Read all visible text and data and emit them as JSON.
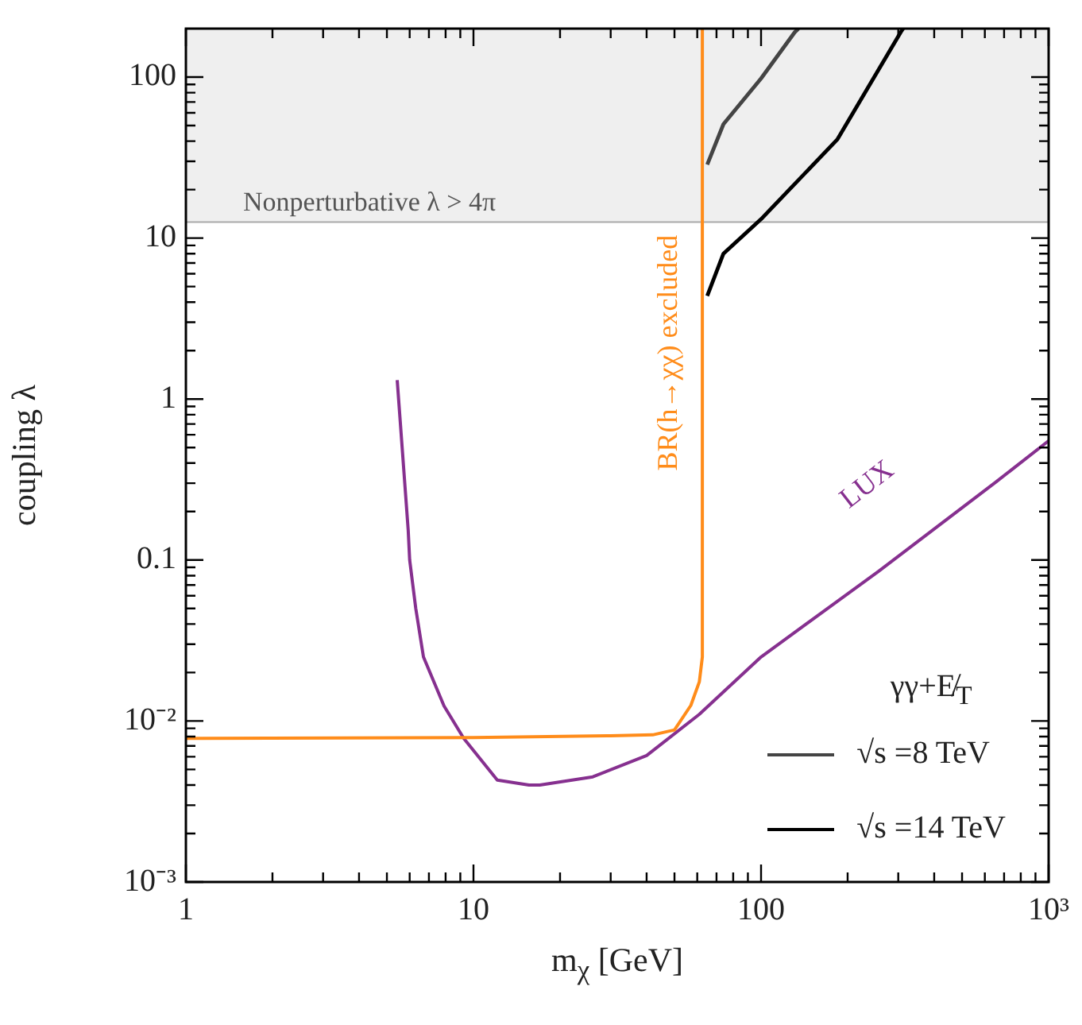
{
  "chart_data": {
    "type": "line",
    "xlabel": "m$_{χ}$  [GeV]",
    "ylabel": "coupling λ",
    "log": "xy",
    "xlim": [
      1,
      1000
    ],
    "ylim": [
      0.001,
      200
    ],
    "xticks": [
      1,
      {
        "value": 2,
        "label": null
      },
      {
        "value": 3,
        "label": null
      },
      {
        "value": 4,
        "label": null
      },
      {
        "value": 5,
        "label": null
      },
      {
        "value": 6,
        "label": null
      },
      {
        "value": 7,
        "label": null
      },
      {
        "value": 8,
        "label": null
      },
      {
        "value": 9,
        "label": null
      },
      10,
      {
        "value": 20,
        "label": null
      },
      {
        "value": 30,
        "label": null
      },
      {
        "value": 40,
        "label": null
      },
      {
        "value": 50,
        "label": null
      },
      {
        "value": 60,
        "label": null
      },
      {
        "value": 70,
        "label": null
      },
      {
        "value": 80,
        "label": null
      },
      {
        "value": 90,
        "label": null
      },
      100,
      {
        "value": 200,
        "label": null
      },
      {
        "value": 300,
        "label": null
      },
      {
        "value": 400,
        "label": null
      },
      {
        "value": 500,
        "label": null
      },
      {
        "value": 600,
        "label": null
      },
      {
        "value": 700,
        "label": null
      },
      {
        "value": 800,
        "label": null
      },
      {
        "value": 900,
        "label": null
      },
      {
        "value": 1000,
        "label": "10³"
      }
    ],
    "yticks": [
      {
        "value": 0.001,
        "label": "10⁻³"
      },
      {
        "value": 0.002,
        "label": null
      },
      {
        "value": 0.003,
        "label": null
      },
      {
        "value": 0.004,
        "label": null
      },
      {
        "value": 0.005,
        "label": null
      },
      {
        "value": 0.006,
        "label": null
      },
      {
        "value": 0.007,
        "label": null
      },
      {
        "value": 0.008,
        "label": null
      },
      {
        "value": 0.009,
        "label": null
      },
      {
        "value": 0.01,
        "label": "10⁻²"
      },
      {
        "value": 0.02,
        "label": null
      },
      {
        "value": 0.03,
        "label": null
      },
      {
        "value": 0.04,
        "label": null
      },
      {
        "value": 0.05,
        "label": null
      },
      {
        "value": 0.06,
        "label": null
      },
      {
        "value": 0.07,
        "label": null
      },
      {
        "value": 0.08,
        "label": null
      },
      {
        "value": 0.09,
        "label": null
      },
      0.1,
      {
        "value": 0.2,
        "label": null
      },
      {
        "value": 0.3,
        "label": null
      },
      {
        "value": 0.4,
        "label": null
      },
      {
        "value": 0.5,
        "label": null
      },
      {
        "value": 0.6,
        "label": null
      },
      {
        "value": 0.7,
        "label": null
      },
      {
        "value": 0.8,
        "label": null
      },
      {
        "value": 0.9,
        "label": null
      },
      1,
      {
        "value": 2,
        "label": null
      },
      {
        "value": 3,
        "label": null
      },
      {
        "value": 4,
        "label": null
      },
      {
        "value": 5,
        "label": null
      },
      {
        "value": 6,
        "label": null
      },
      {
        "value": 7,
        "label": null
      },
      {
        "value": 8,
        "label": null
      },
      {
        "value": 9,
        "label": null
      },
      10,
      {
        "value": 20,
        "label": null
      },
      {
        "value": 30,
        "label": null
      },
      {
        "value": 40,
        "label": null
      },
      {
        "value": 50,
        "label": null
      },
      {
        "value": 60,
        "label": null
      },
      {
        "value": 70,
        "label": null
      },
      {
        "value": 80,
        "label": null
      },
      {
        "value": 90,
        "label": null
      },
      100
    ],
    "bands": [
      {
        "axis": "y",
        "from": 12.57,
        "to": 200,
        "label": "Nonperturbative λ > 4π",
        "color": "#efefef"
      }
    ],
    "legend": "bottom right",
    "legend_title": "γγ+E̸$_{T}$",
    "series": [
      {
        "color": "#ff8c1a",
        "x": [
          1,
          10,
          30,
          42,
          50,
          57,
          61,
          62.5,
          62.5
        ],
        "values": [
          0.0078,
          0.0079,
          0.0081,
          0.0082,
          0.0088,
          0.0125,
          0.0175,
          0.025,
          200
        ]
      },
      {
        "color": "#86308f",
        "x": [
          5.43,
          5.93,
          6.0,
          6.3,
          6.7,
          7.9,
          9.25,
          12.1,
          15.6,
          17,
          26,
          40,
          61,
          100,
          256,
          657,
          1000
        ],
        "values": [
          1.31,
          0.153,
          0.1,
          0.05,
          0.025,
          0.0124,
          0.0078,
          0.0043,
          0.004,
          0.004,
          0.0045,
          0.0061,
          0.011,
          0.025,
          0.085,
          0.306,
          0.55
        ]
      },
      {
        "name": "√s =8 TeV",
        "color": "#444444",
        "x": [
          65,
          74,
          100,
          131,
          135
        ],
        "values": [
          28.6,
          51,
          98,
          190,
          200
        ]
      },
      {
        "name": "√s =14 TeV",
        "color": "#000000",
        "x": [
          65,
          74,
          100,
          184,
          306,
          312
        ],
        "values": [
          4.37,
          8.0,
          13.1,
          40.9,
          190,
          200
        ]
      }
    ],
    "ref_lines": [
      {
        "axis": "y",
        "value": 12.57,
        "color": "#aaaaaa"
      }
    ],
    "annotations": [
      "LUX",
      "BR(h→χχ) excluded"
    ]
  }
}
